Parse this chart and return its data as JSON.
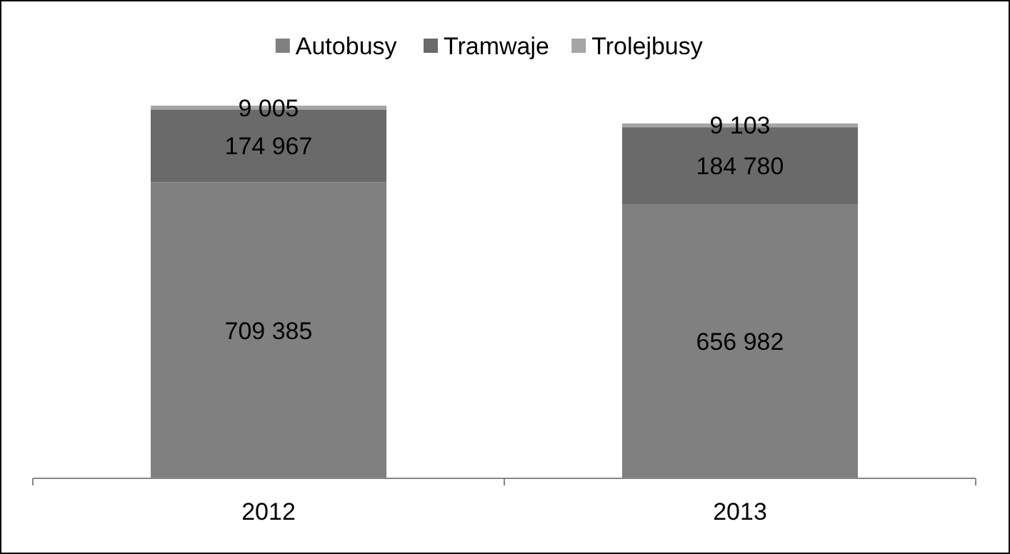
{
  "chart_data": {
    "type": "bar",
    "stacked": true,
    "categories": [
      "2012",
      "2013"
    ],
    "series": [
      {
        "name": "Autobusy",
        "color": "#808080",
        "values": [
          709385,
          656982
        ]
      },
      {
        "name": "Tramwaje",
        "color": "#6a6a6a",
        "values": [
          174967,
          184780
        ]
      },
      {
        "name": "Trolejbusy",
        "color": "#a5a5a5",
        "values": [
          9005,
          9103
        ]
      }
    ],
    "data_labels": true,
    "legend": "top",
    "grid": false
  }
}
